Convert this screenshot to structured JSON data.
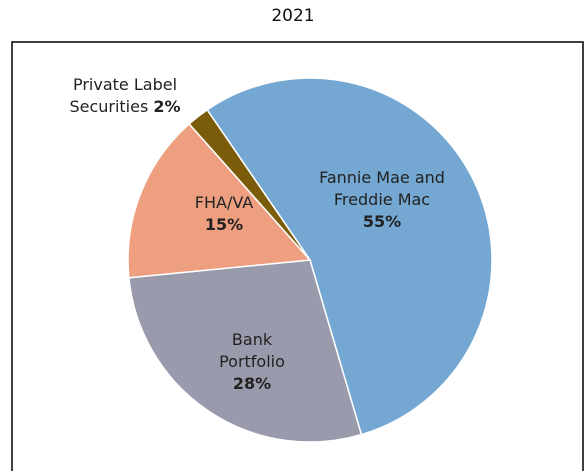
{
  "chart_data": {
    "type": "pie",
    "title": "2021",
    "categories": [
      "Fannie Mae and Freddie Mac",
      "Bank Portfolio",
      "FHA/VA",
      "Private Label Securities"
    ],
    "values": [
      55,
      28,
      15,
      2
    ],
    "value_labels": [
      "55%",
      "28%",
      "15%",
      "2%"
    ],
    "colors": [
      "#74a7d1",
      "#9a9aad",
      "#ee9f7f",
      "#7a5c0a"
    ]
  }
}
